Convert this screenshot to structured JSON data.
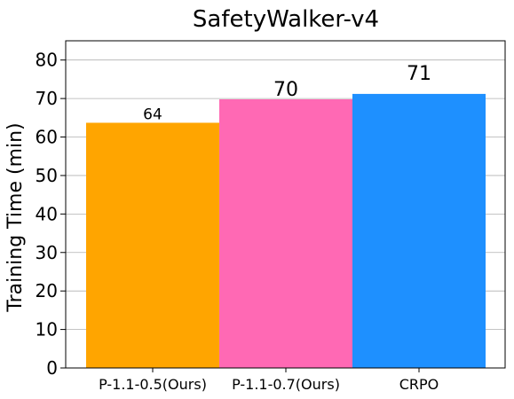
{
  "chart_data": {
    "type": "bar",
    "title": "SafetyWalker-v4",
    "xlabel": "",
    "ylabel": "Training Time (min)",
    "categories": [
      "P-1.1-0.5(Ours)",
      "P-1.1-0.7(Ours)",
      "CRPO"
    ],
    "values": [
      63.7,
      69.8,
      71.2
    ],
    "data_labels": [
      "64",
      "70",
      "71"
    ],
    "colors": [
      "#FFA500",
      "#FF69B4",
      "#1E90FF"
    ],
    "ylim": [
      0,
      85
    ],
    "yticks": [
      "0",
      "10",
      "20",
      "30",
      "40",
      "50",
      "60",
      "70",
      "80"
    ],
    "grid": "horizontal"
  }
}
